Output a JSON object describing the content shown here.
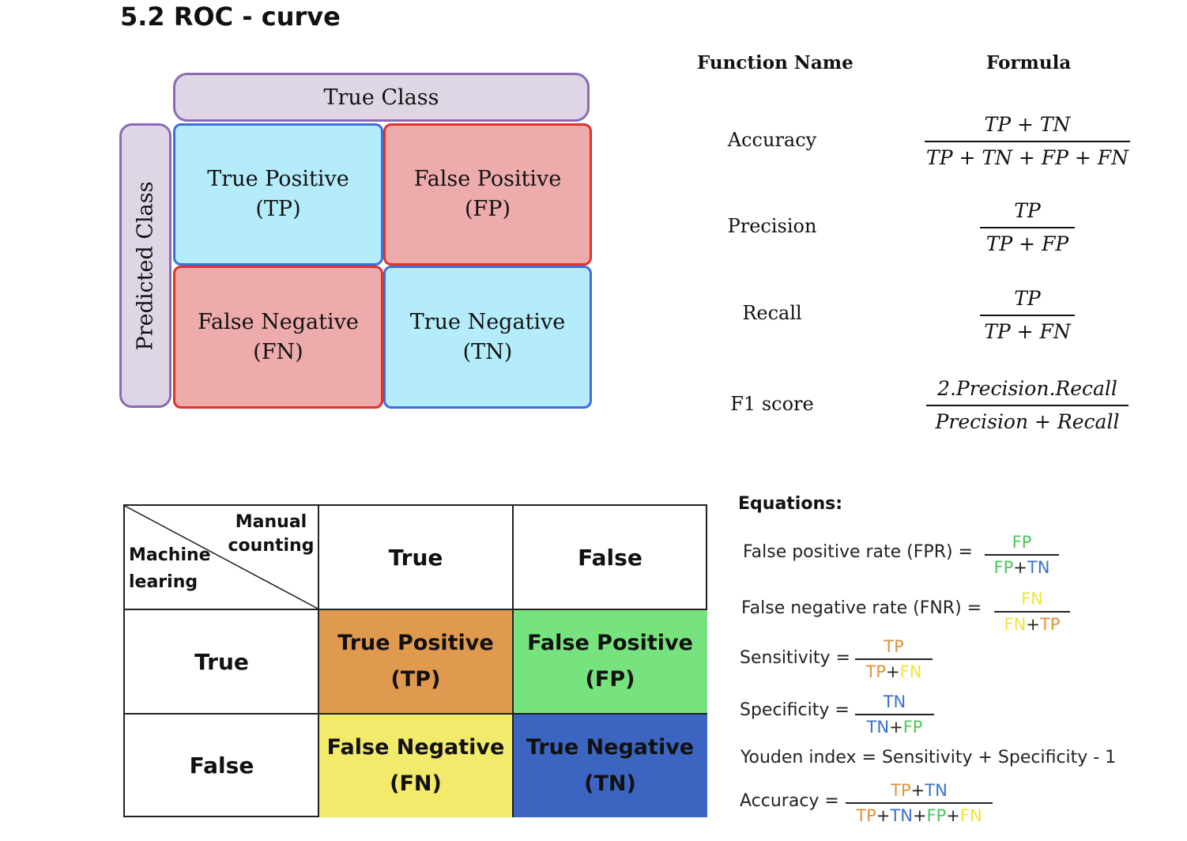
{
  "page": {
    "title": "5.2 ROC - curve"
  },
  "confusion_diagram": {
    "true_class": "True Class",
    "predicted_class": "Predicted Class",
    "cells": {
      "tp": {
        "line1": "True Positive",
        "line2": "(TP)"
      },
      "fp": {
        "line1": "False Positive",
        "line2": "(FP)"
      },
      "fn": {
        "line1": "False Negative",
        "line2": "(FN)"
      },
      "tn": {
        "line1": "True Negative",
        "line2": "(TN)"
      }
    },
    "colors": {
      "positive_fill": "#b4ecfb",
      "positive_border": "#3d6fdd",
      "negative_fill": "#eeabab",
      "negative_border": "#e0312b",
      "class_fill": "#dfd6e5",
      "class_border": "#8b6ab3"
    }
  },
  "formula_table": {
    "headers": {
      "name": "Function Name",
      "formula": "Formula"
    },
    "rows": [
      {
        "name": "Accuracy",
        "numerator": "TP + TN",
        "denominator": "TP + TN + FP + FN"
      },
      {
        "name": "Precision",
        "numerator": "TP",
        "denominator": "TP + FP"
      },
      {
        "name": "Recall",
        "numerator": "TP",
        "denominator": "TP + FN"
      },
      {
        "name": "F1 score",
        "numerator": "2.Precision.Recall",
        "denominator": "Precision + Recall"
      }
    ]
  },
  "matrix_table": {
    "corner": {
      "top_line1": "Manual",
      "top_line2": "counting",
      "bottom_line1": "Machine",
      "bottom_line2": "learing"
    },
    "col_headers": [
      "True",
      "False"
    ],
    "row_headers": [
      "True",
      "False"
    ],
    "cells": {
      "tp": {
        "line1": "True Positive",
        "line2": "(TP)",
        "color": "#e09a50"
      },
      "fp": {
        "line1": "False Positive",
        "line2": "(FP)",
        "color": "#77e37f"
      },
      "fn": {
        "line1": "False Negative",
        "line2": "(FN)",
        "color": "#f2ea6a"
      },
      "tn": {
        "line1": "True Negative",
        "line2": "(TN)",
        "color": "#3b65c0"
      }
    }
  },
  "equations": {
    "title": "Equations:",
    "colors": {
      "tp": "#e0913a",
      "tn": "#3a6fcf",
      "fp": "#49c658",
      "fn": "#efe43a",
      "plus": "#222222"
    },
    "fpr": {
      "label": "False positive rate (FPR) =",
      "num": [
        "FP"
      ],
      "den": [
        "FP",
        "+",
        "TN"
      ]
    },
    "fnr": {
      "label": "False negative rate (FNR) =",
      "num": [
        "FN"
      ],
      "den": [
        "FN",
        "+",
        "TP"
      ]
    },
    "sensitivity": {
      "label": "Sensitivity =",
      "num": [
        "TP"
      ],
      "den": [
        "TP",
        "+",
        "FN"
      ]
    },
    "specificity": {
      "label": "Specificity =",
      "num": [
        "TN"
      ],
      "den": [
        "TN",
        "+",
        "FP"
      ]
    },
    "youden": {
      "text": "Youden index = Sensitivity + Specificity - 1"
    },
    "accuracy": {
      "label": "Accuracy =",
      "num": [
        "TP",
        "+",
        "TN"
      ],
      "den": [
        "TP",
        "+",
        "TN",
        "+",
        "FP",
        "+",
        "FN"
      ]
    }
  }
}
